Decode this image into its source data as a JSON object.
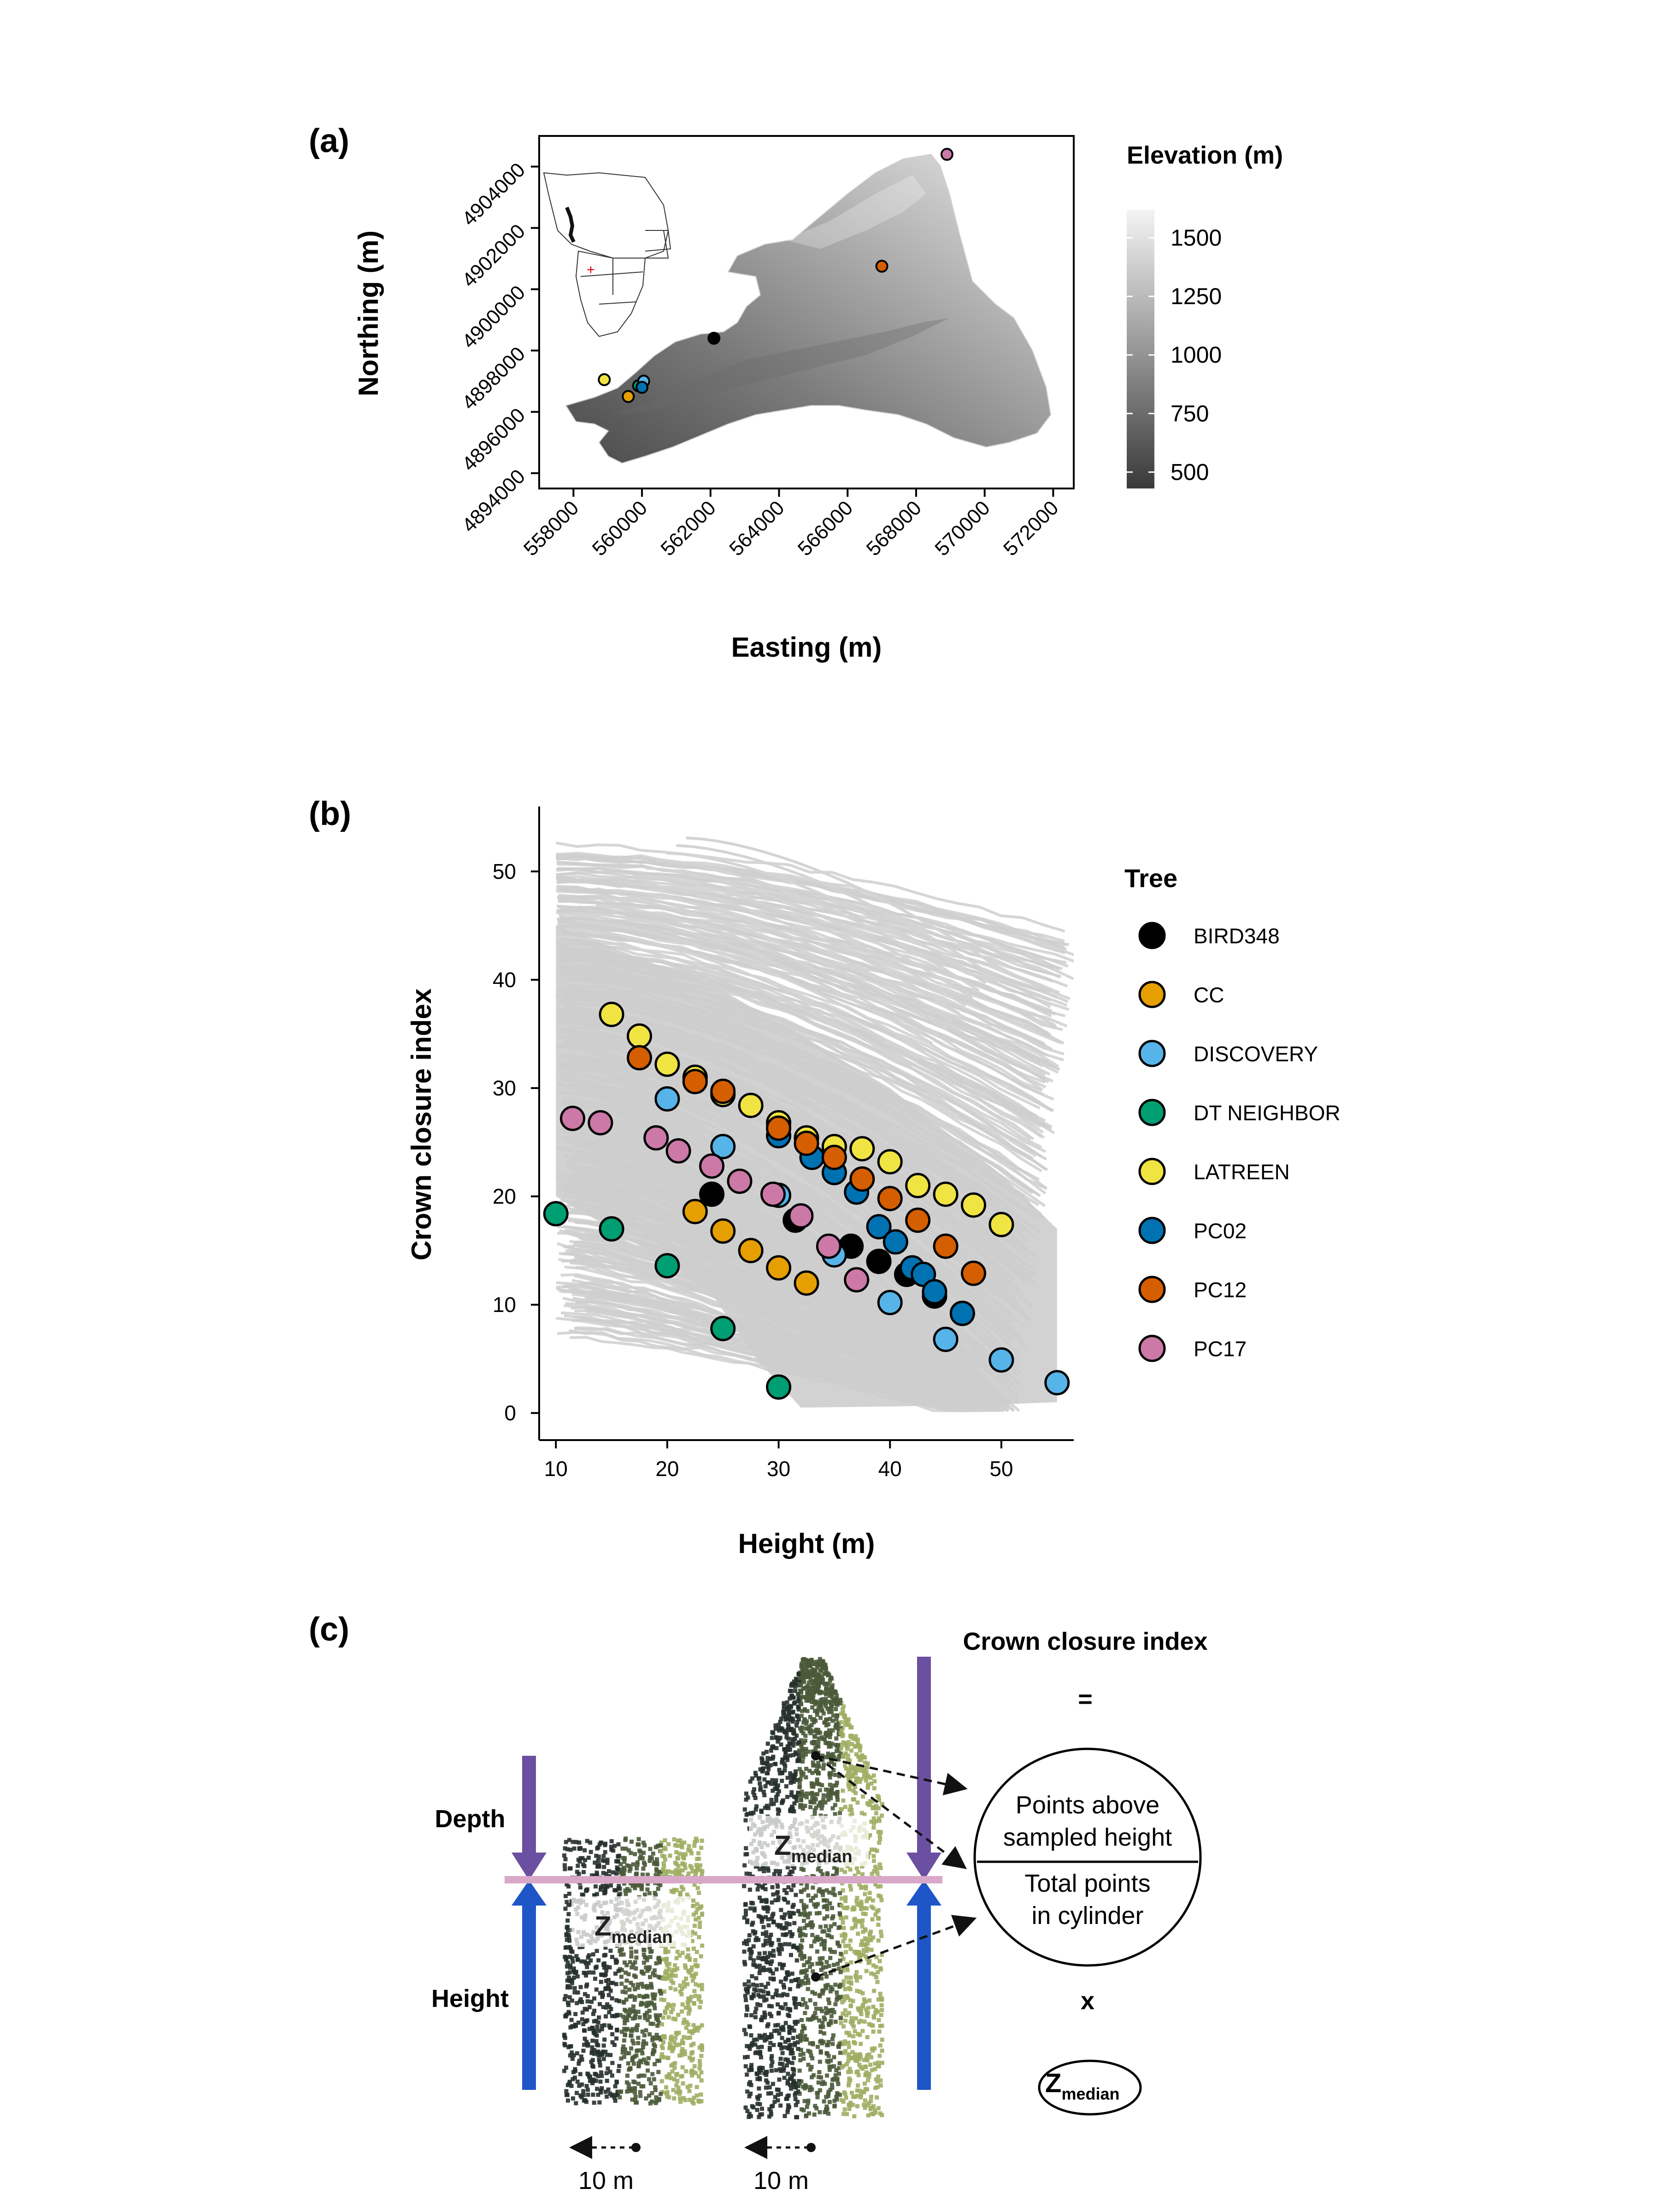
{
  "panel_a": {
    "label": "(a)",
    "xlabel": "Easting (m)",
    "ylabel": "Northing (m)",
    "x_ticks": [
      "558000",
      "560000",
      "562000",
      "564000",
      "566000",
      "568000",
      "570000",
      "572000"
    ],
    "y_ticks": [
      "4894000",
      "4896000",
      "4898000",
      "4900000",
      "4902000",
      "4904000"
    ],
    "legend_title": "Elevation (m)",
    "legend_values": [
      "1500",
      "1250",
      "1000",
      "750",
      "500"
    ],
    "sites": [
      {
        "x": 558900,
        "y": 4897050,
        "color": "#f0e442"
      },
      {
        "x": 559600,
        "y": 4896500,
        "color": "#e69f00"
      },
      {
        "x": 559900,
        "y": 4896850,
        "color": "#009e73"
      },
      {
        "x": 560050,
        "y": 4897000,
        "color": "#56b4e9"
      },
      {
        "x": 560000,
        "y": 4896800,
        "color": "#0072b2"
      },
      {
        "x": 562100,
        "y": 4898400,
        "color": "#000000"
      },
      {
        "x": 567000,
        "y": 4900750,
        "color": "#d55e00"
      },
      {
        "x": 568900,
        "y": 4904400,
        "color": "#cc79a7"
      }
    ]
  },
  "panel_b": {
    "label": "(b)",
    "legend_title": "Tree"
  },
  "chart_data": {
    "type": "scatter",
    "xlabel": "Height (m)",
    "ylabel": "Crown closure index",
    "xlim": [
      8.5,
      56.5
    ],
    "ylim": [
      -2.5,
      56
    ],
    "x_ticks": [
      "10",
      "20",
      "30",
      "40",
      "50"
    ],
    "y_ticks": [
      "0",
      "10",
      "20",
      "30",
      "40",
      "50"
    ],
    "legend_position": "right",
    "series": [
      {
        "name": "BIRD348",
        "color": "#000000",
        "points": [
          [
            24,
            20.2
          ],
          [
            31.5,
            17.8
          ],
          [
            36.5,
            15.4
          ],
          [
            39,
            14
          ],
          [
            41.5,
            12.8
          ],
          [
            44,
            10.8
          ],
          [
            46.5,
            9.2
          ]
        ]
      },
      {
        "name": "CC",
        "color": "#e69f00",
        "points": [
          [
            22.5,
            18.6
          ],
          [
            25,
            16.8
          ],
          [
            27.5,
            15
          ],
          [
            30,
            13.4
          ],
          [
            32.5,
            12
          ]
        ]
      },
      {
        "name": "DISCOVERY",
        "color": "#56b4e9",
        "points": [
          [
            20,
            29
          ],
          [
            25,
            24.6
          ],
          [
            30,
            20.1
          ],
          [
            35,
            14.6
          ],
          [
            40,
            10.2
          ],
          [
            45,
            6.8
          ],
          [
            50,
            4.9
          ],
          [
            55,
            2.8
          ]
        ]
      },
      {
        "name": "DT NEIGHBOR",
        "color": "#009e73",
        "points": [
          [
            10,
            18.4
          ],
          [
            15,
            17
          ],
          [
            20,
            13.6
          ],
          [
            25,
            7.8
          ],
          [
            30,
            2.4
          ]
        ]
      },
      {
        "name": "LATREEN",
        "color": "#f0e442",
        "points": [
          [
            15,
            36.8
          ],
          [
            17.5,
            34.8
          ],
          [
            20,
            32.2
          ],
          [
            22.5,
            31
          ],
          [
            25,
            29.4
          ],
          [
            27.5,
            28.4
          ],
          [
            30,
            26.8
          ],
          [
            32.5,
            25.4
          ],
          [
            35,
            24.6
          ],
          [
            37.5,
            24.4
          ],
          [
            40,
            23.2
          ],
          [
            42.5,
            21
          ],
          [
            45,
            20.2
          ],
          [
            47.5,
            19.2
          ],
          [
            50,
            17.4
          ]
        ]
      },
      {
        "name": "PC02",
        "color": "#0072b2",
        "points": [
          [
            30,
            25.6
          ],
          [
            33,
            23.6
          ],
          [
            35,
            22.2
          ],
          [
            37,
            20.4
          ],
          [
            39,
            17.2
          ],
          [
            40.5,
            15.8
          ],
          [
            42,
            13.4
          ],
          [
            43,
            12.8
          ],
          [
            44,
            11.2
          ],
          [
            46.5,
            9.2
          ]
        ]
      },
      {
        "name": "PC12",
        "color": "#d55e00",
        "points": [
          [
            17.5,
            32.8
          ],
          [
            22.5,
            30.6
          ],
          [
            25,
            29.7
          ],
          [
            30,
            26.3
          ],
          [
            32.5,
            24.9
          ],
          [
            35,
            23.6
          ],
          [
            37.5,
            21.6
          ],
          [
            40,
            19.8
          ],
          [
            42.5,
            17.8
          ],
          [
            45,
            15.4
          ],
          [
            47.5,
            12.9
          ]
        ]
      },
      {
        "name": "PC17",
        "color": "#cc79a7",
        "points": [
          [
            11.5,
            27.2
          ],
          [
            14,
            26.8
          ],
          [
            19,
            25.4
          ],
          [
            21,
            24.2
          ],
          [
            24,
            22.8
          ],
          [
            26.5,
            21.4
          ],
          [
            29.5,
            20.2
          ],
          [
            32,
            18.2
          ],
          [
            34.5,
            15.4
          ],
          [
            37,
            12.3
          ]
        ]
      }
    ]
  },
  "panel_c": {
    "label": "(c)",
    "depth_label": "Depth",
    "height_label": "Height",
    "zmedian_main": "Z",
    "zmedian_sub": "median",
    "title": "Crown closure index",
    "equals": "=",
    "numerator_line1": "Points above",
    "numerator_line2": "sampled height",
    "denominator_line1": "Total points",
    "denominator_line2": "in cylinder",
    "times": "x",
    "scale_1": "10 m",
    "scale_2": "10 m"
  }
}
